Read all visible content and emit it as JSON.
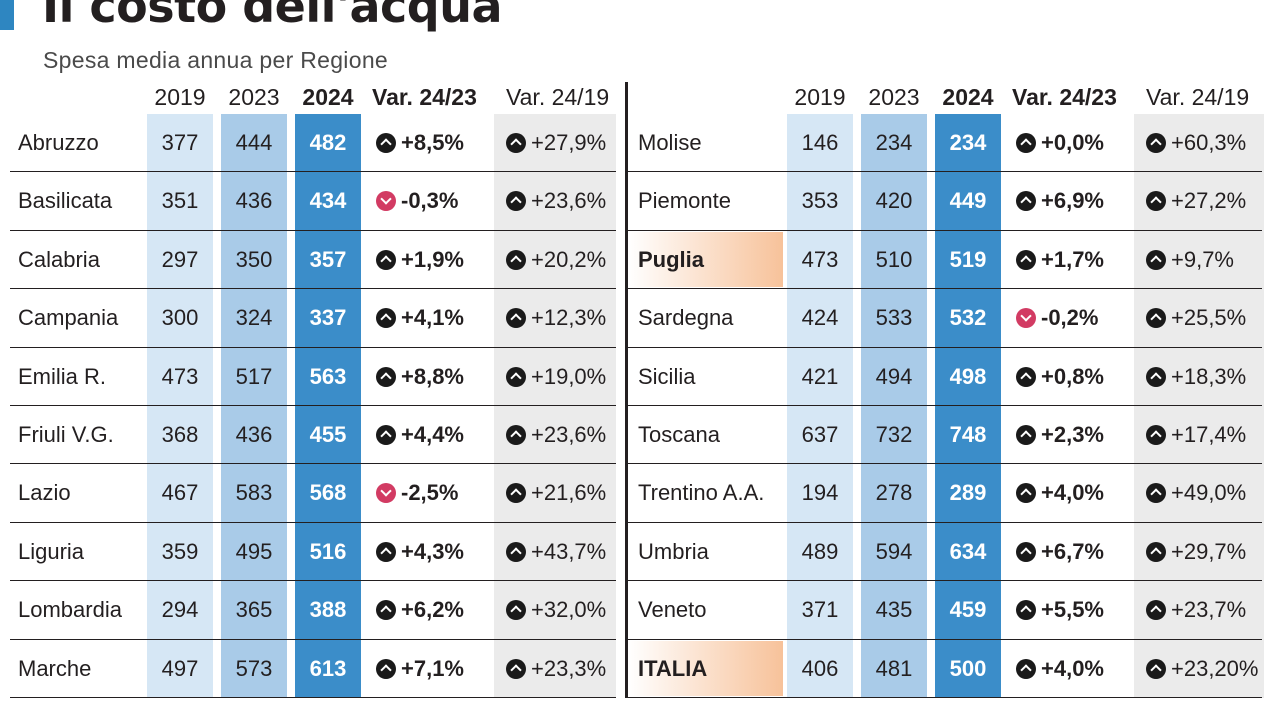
{
  "title": "Il costo dell'acqua",
  "subtitle": "Spesa media annua per Regione",
  "headers": {
    "y2019": "2019",
    "y2023": "2023",
    "y2024": "2024",
    "var2423": "Var. 24/23",
    "var2419": "Var. 24/19"
  },
  "colors": {
    "accent": "#2e86c1",
    "col_2019": "#d6e7f5",
    "col_2023": "#a9cbe8",
    "col_2024": "#3b8dc9",
    "col_var2419": "#ebebeb",
    "highlight": "#f7c29a",
    "up_icon": "#1a1a1a",
    "down_icon": "#d23b63"
  },
  "tables": [
    {
      "rows": [
        {
          "region": "Abruzzo",
          "y2019": "377",
          "y2023": "444",
          "y2024": "482",
          "var2423": "+8,5%",
          "trend2423": "up",
          "var2419": "+27,9%",
          "trend2419": "up"
        },
        {
          "region": "Basilicata",
          "y2019": "351",
          "y2023": "436",
          "y2024": "434",
          "var2423": "-0,3%",
          "trend2423": "down",
          "var2419": "+23,6%",
          "trend2419": "up"
        },
        {
          "region": "Calabria",
          "y2019": "297",
          "y2023": "350",
          "y2024": "357",
          "var2423": "+1,9%",
          "trend2423": "up",
          "var2419": "+20,2%",
          "trend2419": "up"
        },
        {
          "region": "Campania",
          "y2019": "300",
          "y2023": "324",
          "y2024": "337",
          "var2423": "+4,1%",
          "trend2423": "up",
          "var2419": "+12,3%",
          "trend2419": "up"
        },
        {
          "region": "Emilia R.",
          "y2019": "473",
          "y2023": "517",
          "y2024": "563",
          "var2423": "+8,8%",
          "trend2423": "up",
          "var2419": "+19,0%",
          "trend2419": "up"
        },
        {
          "region": "Friuli V.G.",
          "y2019": "368",
          "y2023": "436",
          "y2024": "455",
          "var2423": "+4,4%",
          "trend2423": "up",
          "var2419": "+23,6%",
          "trend2419": "up"
        },
        {
          "region": "Lazio",
          "y2019": "467",
          "y2023": "583",
          "y2024": "568",
          "var2423": "-2,5%",
          "trend2423": "down",
          "var2419": "+21,6%",
          "trend2419": "up"
        },
        {
          "region": "Liguria",
          "y2019": "359",
          "y2023": "495",
          "y2024": "516",
          "var2423": "+4,3%",
          "trend2423": "up",
          "var2419": "+43,7%",
          "trend2419": "up"
        },
        {
          "region": "Lombardia",
          "y2019": "294",
          "y2023": "365",
          "y2024": "388",
          "var2423": "+6,2%",
          "trend2423": "up",
          "var2419": "+32,0%",
          "trend2419": "up"
        },
        {
          "region": "Marche",
          "y2019": "497",
          "y2023": "573",
          "y2024": "613",
          "var2423": "+7,1%",
          "trend2423": "up",
          "var2419": "+23,3%",
          "trend2419": "up"
        }
      ]
    },
    {
      "rows": [
        {
          "region": "Molise",
          "y2019": "146",
          "y2023": "234",
          "y2024": "234",
          "var2423": "+0,0%",
          "trend2423": "up",
          "var2419": "+60,3%",
          "trend2419": "up"
        },
        {
          "region": "Piemonte",
          "y2019": "353",
          "y2023": "420",
          "y2024": "449",
          "var2423": "+6,9%",
          "trend2423": "up",
          "var2419": "+27,2%",
          "trend2419": "up"
        },
        {
          "region": "Puglia",
          "y2019": "473",
          "y2023": "510",
          "y2024": "519",
          "var2423": "+1,7%",
          "trend2423": "up",
          "var2419": "+9,7%",
          "trend2419": "up",
          "highlight": true
        },
        {
          "region": "Sardegna",
          "y2019": "424",
          "y2023": "533",
          "y2024": "532",
          "var2423": "-0,2%",
          "trend2423": "down",
          "var2419": "+25,5%",
          "trend2419": "up"
        },
        {
          "region": "Sicilia",
          "y2019": "421",
          "y2023": "494",
          "y2024": "498",
          "var2423": "+0,8%",
          "trend2423": "up",
          "var2419": "+18,3%",
          "trend2419": "up"
        },
        {
          "region": "Toscana",
          "y2019": "637",
          "y2023": "732",
          "y2024": "748",
          "var2423": "+2,3%",
          "trend2423": "up",
          "var2419": "+17,4%",
          "trend2419": "up"
        },
        {
          "region": "Trentino A.A.",
          "y2019": "194",
          "y2023": "278",
          "y2024": "289",
          "var2423": "+4,0%",
          "trend2423": "up",
          "var2419": "+49,0%",
          "trend2419": "up"
        },
        {
          "region": "Umbria",
          "y2019": "489",
          "y2023": "594",
          "y2024": "634",
          "var2423": "+6,7%",
          "trend2423": "up",
          "var2419": "+29,7%",
          "trend2419": "up"
        },
        {
          "region": "Veneto",
          "y2019": "371",
          "y2023": "435",
          "y2024": "459",
          "var2423": "+5,5%",
          "trend2423": "up",
          "var2419": "+23,7%",
          "trend2419": "up"
        },
        {
          "region": "ITALIA",
          "y2019": "406",
          "y2023": "481",
          "y2024": "500",
          "var2423": "+4,0%",
          "trend2423": "up",
          "var2419": "+23,20%",
          "trend2419": "up",
          "highlight": true
        }
      ]
    }
  ]
}
